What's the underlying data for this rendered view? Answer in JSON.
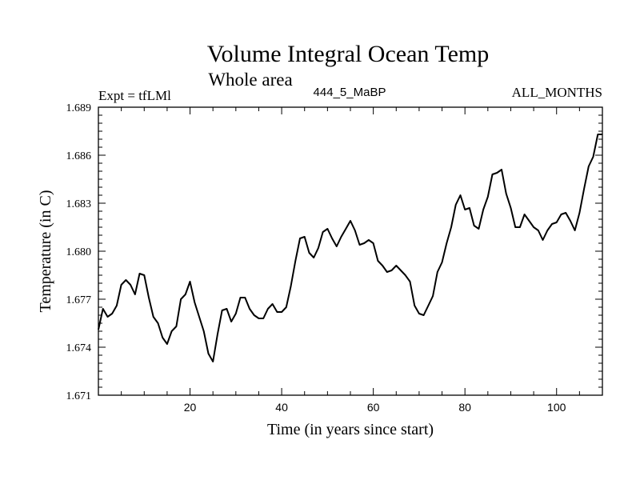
{
  "chart_data": {
    "type": "line",
    "title": "Volume Integral Ocean Temp",
    "subtitle": "Whole area",
    "left_label": "Expt = tfLMl",
    "center_label": "444_5_MaBP",
    "right_label": "ALL_MONTHS",
    "xlabel": "Time (in years since start)",
    "ylabel": "Temperature (in C)",
    "xlim": [
      0,
      110
    ],
    "ylim": [
      1.671,
      1.689
    ],
    "x_ticks": [
      20,
      40,
      60,
      80,
      100
    ],
    "x_tick_labels": [
      "20",
      "40",
      "60",
      "80",
      "100"
    ],
    "y_ticks": [
      1.671,
      1.674,
      1.677,
      1.68,
      1.683,
      1.686,
      1.689
    ],
    "y_tick_labels": [
      "1.671",
      "1.674",
      "1.677",
      "1.680",
      "1.683",
      "1.686",
      "1.689"
    ],
    "grid": false,
    "series": [
      {
        "name": "Volume integral ocean temperature",
        "color": "#000000",
        "x": [
          0,
          1,
          2,
          3,
          4,
          5,
          6,
          7,
          8,
          9,
          10,
          11,
          12,
          13,
          14,
          15,
          16,
          17,
          18,
          19,
          20,
          21,
          22,
          23,
          24,
          25,
          26,
          27,
          28,
          29,
          30,
          31,
          32,
          33,
          34,
          35,
          36,
          37,
          38,
          39,
          40,
          41,
          42,
          43,
          44,
          45,
          46,
          47,
          48,
          49,
          50,
          51,
          52,
          53,
          54,
          55,
          56,
          57,
          58,
          59,
          60,
          61,
          62,
          63,
          64,
          65,
          66,
          67,
          68,
          69,
          70,
          71,
          72,
          73,
          74,
          75,
          76,
          77,
          78,
          79,
          80,
          81,
          82,
          83,
          84,
          85,
          86,
          87,
          88,
          89,
          90,
          91,
          92,
          93,
          94,
          95,
          96,
          97,
          98,
          99,
          100,
          101,
          102,
          103,
          104,
          105,
          106,
          107,
          108,
          109,
          110
        ],
        "values": [
          1.6751,
          1.6764,
          1.6759,
          1.6761,
          1.6766,
          1.6779,
          1.6782,
          1.6779,
          1.6773,
          1.6786,
          1.6785,
          1.6771,
          1.6759,
          1.6755,
          1.6746,
          1.6742,
          1.675,
          1.6753,
          1.677,
          1.6773,
          1.6781,
          1.6768,
          1.6759,
          1.675,
          1.6736,
          1.6731,
          1.6748,
          1.6763,
          1.6764,
          1.6756,
          1.6761,
          1.6771,
          1.6771,
          1.6764,
          1.676,
          1.6758,
          1.6758,
          1.6764,
          1.6767,
          1.6762,
          1.6762,
          1.6765,
          1.6778,
          1.6794,
          1.6808,
          1.6809,
          1.6799,
          1.6796,
          1.6802,
          1.6812,
          1.6814,
          1.6808,
          1.6803,
          1.6809,
          1.6814,
          1.6819,
          1.6813,
          1.6804,
          1.6805,
          1.6807,
          1.6805,
          1.6794,
          1.6791,
          1.6787,
          1.6788,
          1.6791,
          1.6788,
          1.6785,
          1.6781,
          1.6766,
          1.6761,
          1.676,
          1.6766,
          1.6772,
          1.6787,
          1.6793,
          1.6805,
          1.6815,
          1.6829,
          1.6835,
          1.6826,
          1.6827,
          1.6816,
          1.6814,
          1.6826,
          1.6834,
          1.6848,
          1.6849,
          1.6851,
          1.6836,
          1.6827,
          1.6815,
          1.6815,
          1.6823,
          1.6819,
          1.6815,
          1.6813,
          1.6807,
          1.6813,
          1.6817,
          1.6818,
          1.6823,
          1.6824,
          1.6819,
          1.6813,
          1.6824,
          1.6839,
          1.6853,
          1.6859,
          1.6873,
          1.6873
        ]
      }
    ]
  }
}
